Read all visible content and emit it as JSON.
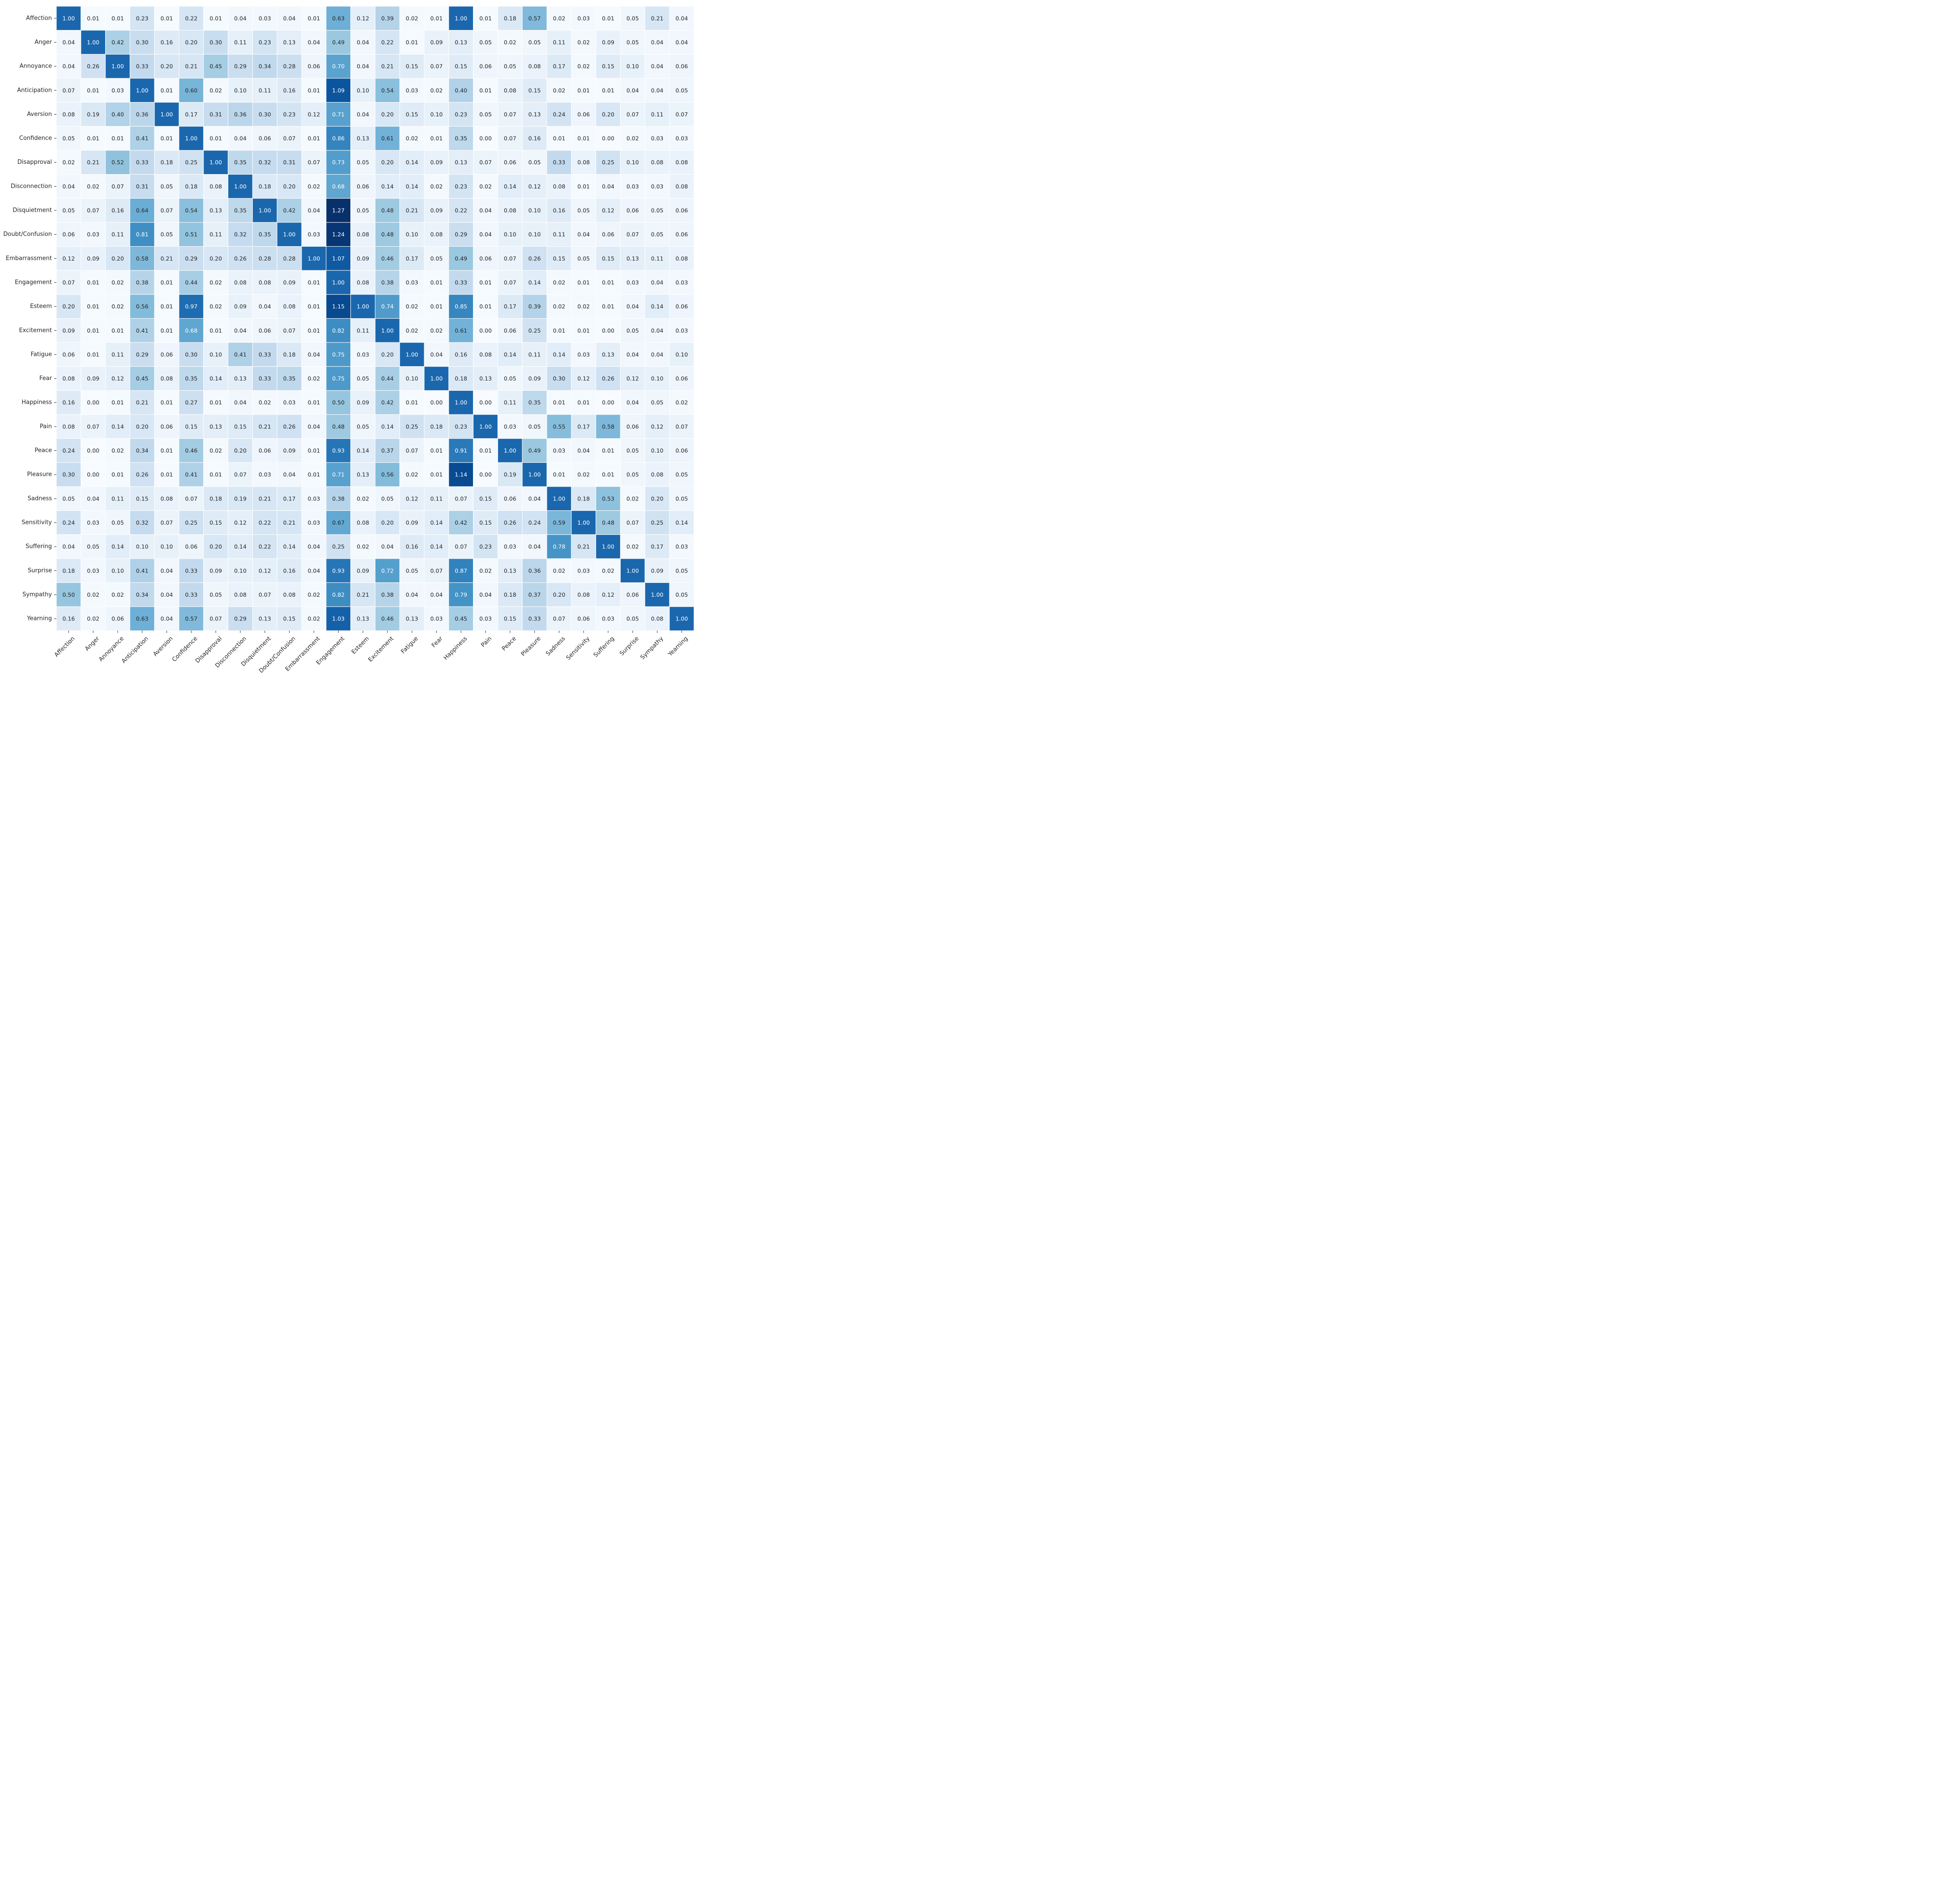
{
  "chart_data": {
    "type": "heatmap",
    "title": "",
    "xlabel": "",
    "ylabel": "",
    "colormap": "Blues",
    "value_range": [
      0,
      1.27
    ],
    "categories_x": [
      "Affection",
      "Anger",
      "Annoyance",
      "Anticipation",
      "Aversion",
      "Confidence",
      "Disapproval",
      "Disconnection",
      "Disquietment",
      "Doubt/Confusion",
      "Embarrassment",
      "Engagement",
      "Esteem",
      "Excitement",
      "Fatigue",
      "Fear",
      "Happiness",
      "Pain",
      "Peace",
      "Pleasure",
      "Sadness",
      "Sensitivity",
      "Suffering",
      "Surprise",
      "Sympathy",
      "Yearning"
    ],
    "categories_y": [
      "Affection",
      "Anger",
      "Annoyance",
      "Anticipation",
      "Aversion",
      "Confidence",
      "Disapproval",
      "Disconnection",
      "Disquietment",
      "Doubt/Confusion",
      "Embarrassment",
      "Engagement",
      "Esteem",
      "Excitement",
      "Fatigue",
      "Fear",
      "Happiness",
      "Pain",
      "Peace",
      "Pleasure",
      "Sadness",
      "Sensitivity",
      "Suffering",
      "Surprise",
      "Sympathy",
      "Yearning"
    ],
    "values": [
      [
        1.0,
        0.01,
        0.01,
        0.23,
        0.01,
        0.22,
        0.01,
        0.04,
        0.03,
        0.04,
        0.01,
        0.63,
        0.12,
        0.39,
        0.02,
        0.01,
        1.0,
        0.01,
        0.18,
        0.57,
        0.02,
        0.03,
        0.01,
        0.05,
        0.21,
        0.04
      ],
      [
        0.04,
        1.0,
        0.42,
        0.3,
        0.16,
        0.2,
        0.3,
        0.11,
        0.23,
        0.13,
        0.04,
        0.49,
        0.04,
        0.22,
        0.01,
        0.09,
        0.13,
        0.05,
        0.02,
        0.05,
        0.11,
        0.02,
        0.09,
        0.05,
        0.04,
        0.04
      ],
      [
        0.04,
        0.26,
        1.0,
        0.33,
        0.2,
        0.21,
        0.45,
        0.29,
        0.34,
        0.28,
        0.06,
        0.7,
        0.04,
        0.21,
        0.15,
        0.07,
        0.15,
        0.06,
        0.05,
        0.08,
        0.17,
        0.02,
        0.15,
        0.1,
        0.04,
        0.06
      ],
      [
        0.07,
        0.01,
        0.03,
        1.0,
        0.01,
        0.6,
        0.02,
        0.1,
        0.11,
        0.16,
        0.01,
        1.09,
        0.1,
        0.54,
        0.03,
        0.02,
        0.4,
        0.01,
        0.08,
        0.15,
        0.02,
        0.01,
        0.01,
        0.04,
        0.04,
        0.05
      ],
      [
        0.08,
        0.19,
        0.4,
        0.36,
        1.0,
        0.17,
        0.31,
        0.36,
        0.3,
        0.23,
        0.12,
        0.71,
        0.04,
        0.2,
        0.15,
        0.1,
        0.23,
        0.05,
        0.07,
        0.13,
        0.24,
        0.06,
        0.2,
        0.07,
        0.11,
        0.07
      ],
      [
        0.05,
        0.01,
        0.01,
        0.41,
        0.01,
        1.0,
        0.01,
        0.04,
        0.06,
        0.07,
        0.01,
        0.86,
        0.13,
        0.61,
        0.02,
        0.01,
        0.35,
        0.0,
        0.07,
        0.16,
        0.01,
        0.01,
        0.0,
        0.02,
        0.03,
        0.03
      ],
      [
        0.02,
        0.21,
        0.52,
        0.33,
        0.18,
        0.25,
        1.0,
        0.35,
        0.32,
        0.31,
        0.07,
        0.73,
        0.05,
        0.2,
        0.14,
        0.09,
        0.13,
        0.07,
        0.06,
        0.05,
        0.33,
        0.08,
        0.25,
        0.1,
        0.08,
        0.08
      ],
      [
        0.04,
        0.02,
        0.07,
        0.31,
        0.05,
        0.18,
        0.08,
        1.0,
        0.18,
        0.2,
        0.02,
        0.68,
        0.06,
        0.14,
        0.14,
        0.02,
        0.23,
        0.02,
        0.14,
        0.12,
        0.08,
        0.01,
        0.04,
        0.03,
        0.03,
        0.08
      ],
      [
        0.05,
        0.07,
        0.16,
        0.64,
        0.07,
        0.54,
        0.13,
        0.35,
        1.0,
        0.42,
        0.04,
        1.27,
        0.05,
        0.48,
        0.21,
        0.09,
        0.22,
        0.04,
        0.08,
        0.1,
        0.16,
        0.05,
        0.12,
        0.06,
        0.05,
        0.06
      ],
      [
        0.06,
        0.03,
        0.11,
        0.81,
        0.05,
        0.51,
        0.11,
        0.32,
        0.35,
        1.0,
        0.03,
        1.24,
        0.08,
        0.48,
        0.1,
        0.08,
        0.29,
        0.04,
        0.1,
        0.1,
        0.11,
        0.04,
        0.06,
        0.07,
        0.05,
        0.06
      ],
      [
        0.12,
        0.09,
        0.2,
        0.58,
        0.21,
        0.29,
        0.2,
        0.26,
        0.28,
        0.28,
        1.0,
        1.07,
        0.09,
        0.46,
        0.17,
        0.05,
        0.49,
        0.06,
        0.07,
        0.26,
        0.15,
        0.05,
        0.15,
        0.13,
        0.11,
        0.08
      ],
      [
        0.07,
        0.01,
        0.02,
        0.38,
        0.01,
        0.44,
        0.02,
        0.08,
        0.08,
        0.09,
        0.01,
        1.0,
        0.08,
        0.38,
        0.03,
        0.01,
        0.33,
        0.01,
        0.07,
        0.14,
        0.02,
        0.01,
        0.01,
        0.03,
        0.04,
        0.03
      ],
      [
        0.2,
        0.01,
        0.02,
        0.56,
        0.01,
        0.97,
        0.02,
        0.09,
        0.04,
        0.08,
        0.01,
        1.15,
        1.0,
        0.74,
        0.02,
        0.01,
        0.85,
        0.01,
        0.17,
        0.39,
        0.02,
        0.02,
        0.01,
        0.04,
        0.14,
        0.06
      ],
      [
        0.09,
        0.01,
        0.01,
        0.41,
        0.01,
        0.68,
        0.01,
        0.04,
        0.06,
        0.07,
        0.01,
        0.82,
        0.11,
        1.0,
        0.02,
        0.02,
        0.61,
        0.0,
        0.06,
        0.25,
        0.01,
        0.01,
        0.0,
        0.05,
        0.04,
        0.03
      ],
      [
        0.06,
        0.01,
        0.11,
        0.29,
        0.06,
        0.3,
        0.1,
        0.41,
        0.33,
        0.18,
        0.04,
        0.75,
        0.03,
        0.2,
        1.0,
        0.04,
        0.16,
        0.08,
        0.14,
        0.11,
        0.14,
        0.03,
        0.13,
        0.04,
        0.04,
        0.1
      ],
      [
        0.08,
        0.09,
        0.12,
        0.45,
        0.08,
        0.35,
        0.14,
        0.13,
        0.33,
        0.35,
        0.02,
        0.75,
        0.05,
        0.44,
        0.1,
        1.0,
        0.18,
        0.13,
        0.05,
        0.09,
        0.3,
        0.12,
        0.26,
        0.12,
        0.1,
        0.06
      ],
      [
        0.16,
        0.0,
        0.01,
        0.21,
        0.01,
        0.27,
        0.01,
        0.04,
        0.02,
        0.03,
        0.01,
        0.5,
        0.09,
        0.42,
        0.01,
        0.0,
        1.0,
        0.0,
        0.11,
        0.35,
        0.01,
        0.01,
        0.0,
        0.04,
        0.05,
        0.02
      ],
      [
        0.08,
        0.07,
        0.14,
        0.2,
        0.06,
        0.15,
        0.13,
        0.15,
        0.21,
        0.26,
        0.04,
        0.48,
        0.05,
        0.14,
        0.25,
        0.18,
        0.23,
        1.0,
        0.03,
        0.05,
        0.55,
        0.17,
        0.58,
        0.06,
        0.12,
        0.07
      ],
      [
        0.24,
        0.0,
        0.02,
        0.34,
        0.01,
        0.46,
        0.02,
        0.2,
        0.06,
        0.09,
        0.01,
        0.93,
        0.14,
        0.37,
        0.07,
        0.01,
        0.91,
        0.01,
        1.0,
        0.49,
        0.03,
        0.04,
        0.01,
        0.05,
        0.1,
        0.06
      ],
      [
        0.3,
        0.0,
        0.01,
        0.26,
        0.01,
        0.41,
        0.01,
        0.07,
        0.03,
        0.04,
        0.01,
        0.71,
        0.13,
        0.56,
        0.02,
        0.01,
        1.14,
        0.0,
        0.19,
        1.0,
        0.01,
        0.02,
        0.01,
        0.05,
        0.08,
        0.05
      ],
      [
        0.05,
        0.04,
        0.11,
        0.15,
        0.08,
        0.07,
        0.18,
        0.19,
        0.21,
        0.17,
        0.03,
        0.38,
        0.02,
        0.05,
        0.12,
        0.11,
        0.07,
        0.15,
        0.06,
        0.04,
        1.0,
        0.18,
        0.53,
        0.02,
        0.2,
        0.05
      ],
      [
        0.24,
        0.03,
        0.05,
        0.32,
        0.07,
        0.25,
        0.15,
        0.12,
        0.22,
        0.21,
        0.03,
        0.67,
        0.08,
        0.2,
        0.09,
        0.14,
        0.42,
        0.15,
        0.26,
        0.24,
        0.59,
        1.0,
        0.48,
        0.07,
        0.25,
        0.14
      ],
      [
        0.04,
        0.05,
        0.14,
        0.1,
        0.1,
        0.06,
        0.2,
        0.14,
        0.22,
        0.14,
        0.04,
        0.25,
        0.02,
        0.04,
        0.16,
        0.14,
        0.07,
        0.23,
        0.03,
        0.04,
        0.78,
        0.21,
        1.0,
        0.02,
        0.17,
        0.03
      ],
      [
        0.18,
        0.03,
        0.1,
        0.41,
        0.04,
        0.33,
        0.09,
        0.1,
        0.12,
        0.16,
        0.04,
        0.93,
        0.09,
        0.72,
        0.05,
        0.07,
        0.87,
        0.02,
        0.13,
        0.36,
        0.02,
        0.03,
        0.02,
        1.0,
        0.09,
        0.05
      ],
      [
        0.5,
        0.02,
        0.02,
        0.34,
        0.04,
        0.33,
        0.05,
        0.08,
        0.07,
        0.08,
        0.02,
        0.82,
        0.21,
        0.38,
        0.04,
        0.04,
        0.79,
        0.04,
        0.18,
        0.37,
        0.2,
        0.08,
        0.12,
        0.06,
        1.0,
        0.05
      ],
      [
        0.16,
        0.02,
        0.06,
        0.63,
        0.04,
        0.57,
        0.07,
        0.29,
        0.13,
        0.15,
        0.02,
        1.03,
        0.13,
        0.46,
        0.13,
        0.03,
        0.45,
        0.03,
        0.15,
        0.33,
        0.07,
        0.06,
        0.03,
        0.05,
        0.08,
        1.0
      ]
    ],
    "grid": false,
    "legend": "none"
  }
}
